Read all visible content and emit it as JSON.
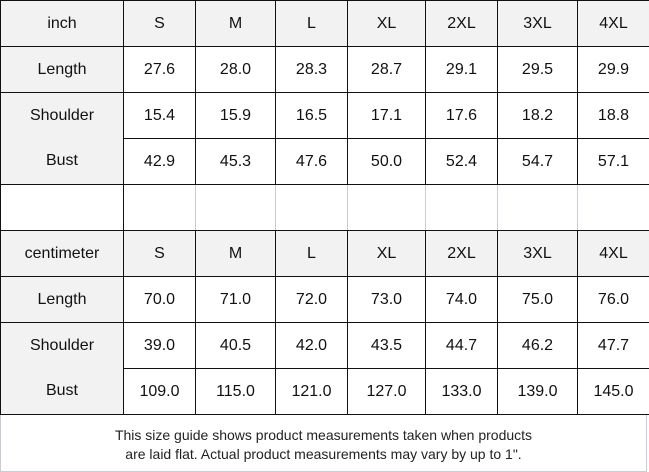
{
  "sizes": [
    "S",
    "M",
    "L",
    "XL",
    "2XL",
    "3XL",
    "4XL"
  ],
  "inch": {
    "unit_label": "inch",
    "rows": [
      {
        "label": "Length",
        "values": [
          "27.6",
          "28.0",
          "28.3",
          "28.7",
          "29.1",
          "29.5",
          "29.9"
        ]
      },
      {
        "label": "Shoulder",
        "values": [
          "15.4",
          "15.9",
          "16.5",
          "17.1",
          "17.6",
          "18.2",
          "18.8"
        ]
      },
      {
        "label": "Bust",
        "values": [
          "42.9",
          "45.3",
          "47.6",
          "50.0",
          "52.4",
          "54.7",
          "57.1"
        ]
      }
    ]
  },
  "cm": {
    "unit_label": "centimeter",
    "rows": [
      {
        "label": "Length",
        "values": [
          "70.0",
          "71.0",
          "72.0",
          "73.0",
          "74.0",
          "75.0",
          "76.0"
        ]
      },
      {
        "label": "Shoulder",
        "values": [
          "39.0",
          "40.5",
          "42.0",
          "43.5",
          "44.7",
          "46.2",
          "47.7"
        ]
      },
      {
        "label": "Bust",
        "values": [
          "109.0",
          "115.0",
          "121.0",
          "127.0",
          "133.0",
          "139.0",
          "145.0"
        ]
      }
    ]
  },
  "note": {
    "line1": "This size guide shows product measurements taken when products",
    "line2": "are laid flat. Actual product measurements may vary by up to 1\"."
  }
}
